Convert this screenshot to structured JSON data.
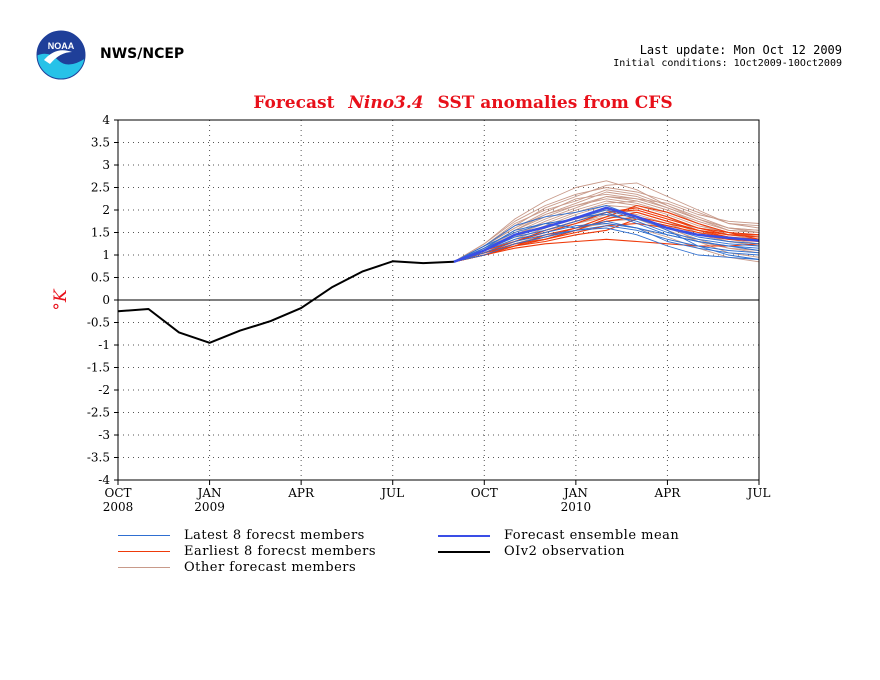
{
  "header": {
    "agency": "NWS/NCEP",
    "last_update": "Last update: Mon Oct 12 2009",
    "initial_conditions": "Initial conditions: 1Oct2009-10Oct2009"
  },
  "logo": {
    "text": "NOAA",
    "colors": {
      "top": "#1f3f99",
      "bottom": "#27c2e8",
      "bird": "#ffffff"
    }
  },
  "legend": {
    "latest": "Latest 8 forecst members",
    "earliest": "Earliest 8 forecst members",
    "other": "Other forecast members",
    "mean": "Forecast ensemble mean",
    "obs": "OIv2 observation"
  },
  "chart_data": {
    "type": "line",
    "title_prefix": "Forecast",
    "title_italic": "Nino3.4",
    "title_suffix": "SST anomalies from CFS",
    "ylabel": "°K",
    "ylim": [
      -4,
      4
    ],
    "yticks": [
      "-4",
      "-3.5",
      "-3",
      "-2.5",
      "-2",
      "-1.5",
      "-1",
      "-0.5",
      "0",
      "0.5",
      "1",
      "1.5",
      "2",
      "2.5",
      "3",
      "3.5",
      "4"
    ],
    "x_range_months": [
      0,
      21
    ],
    "x_ticks": [
      {
        "m": 0,
        "label": "OCT",
        "year": "2008"
      },
      {
        "m": 3,
        "label": "JAN",
        "year": "2009"
      },
      {
        "m": 6,
        "label": "APR",
        "year": ""
      },
      {
        "m": 9,
        "label": "JUL",
        "year": ""
      },
      {
        "m": 12,
        "label": "OCT",
        "year": ""
      },
      {
        "m": 15,
        "label": "JAN",
        "year": "2010"
      },
      {
        "m": 18,
        "label": "APR",
        "year": ""
      },
      {
        "m": 21,
        "label": "JUL",
        "year": ""
      }
    ],
    "grid": true,
    "colors": {
      "title": "#e8101a",
      "ylabel": "#e8101a",
      "latest": "#2f6fd1",
      "earliest": "#ee3a0a",
      "other": "#c89a8a",
      "mean": "#3a4ee6",
      "obs": "#000000"
    },
    "forecast_x": [
      11,
      12,
      13,
      14,
      15,
      16,
      17,
      18,
      19,
      20,
      21
    ],
    "observation": {
      "name": "OIv2 observation",
      "x": [
        0,
        1,
        2,
        3,
        4,
        5,
        6,
        7,
        8,
        9,
        10,
        11
      ],
      "values": [
        -0.25,
        -0.2,
        -0.72,
        -0.95,
        -0.68,
        -0.47,
        -0.18,
        0.28,
        0.63,
        0.86,
        0.82,
        0.85
      ]
    },
    "mean": {
      "name": "Forecast ensemble mean",
      "values": [
        0.85,
        1.1,
        1.45,
        1.62,
        1.82,
        2.05,
        1.85,
        1.6,
        1.45,
        1.38,
        1.32
      ]
    },
    "latest_members": [
      [
        0.85,
        1.15,
        1.55,
        1.7,
        1.6,
        1.75,
        1.6,
        1.3,
        1.15,
        1.05,
        1.0
      ],
      [
        0.85,
        1.1,
        1.4,
        1.55,
        1.75,
        1.95,
        1.7,
        1.45,
        1.3,
        1.2,
        1.15
      ],
      [
        0.85,
        1.2,
        1.65,
        1.85,
        1.95,
        2.1,
        1.85,
        1.55,
        1.2,
        1.0,
        0.9
      ],
      [
        0.85,
        1.05,
        1.3,
        1.45,
        1.55,
        1.6,
        1.45,
        1.2,
        1.0,
        0.95,
        0.9
      ],
      [
        0.85,
        1.15,
        1.45,
        1.6,
        1.85,
        1.9,
        1.75,
        1.5,
        1.35,
        1.25,
        1.2
      ],
      [
        0.85,
        1.1,
        1.35,
        1.5,
        1.65,
        1.7,
        1.6,
        1.45,
        1.3,
        1.2,
        1.1
      ],
      [
        0.85,
        1.2,
        1.5,
        1.7,
        1.8,
        2.0,
        1.8,
        1.6,
        1.4,
        1.3,
        1.25
      ],
      [
        0.85,
        1.0,
        1.25,
        1.4,
        1.55,
        1.65,
        1.55,
        1.35,
        1.2,
        1.1,
        1.05
      ]
    ],
    "earliest_members": [
      [
        0.85,
        1.05,
        1.25,
        1.35,
        1.55,
        1.8,
        1.95,
        1.75,
        1.55,
        1.45,
        1.4
      ],
      [
        0.85,
        1.0,
        1.2,
        1.3,
        1.45,
        1.55,
        1.8,
        1.65,
        1.5,
        1.4,
        1.35
      ],
      [
        0.85,
        1.05,
        1.3,
        1.5,
        1.7,
        1.95,
        2.05,
        1.85,
        1.6,
        1.45,
        1.45
      ],
      [
        0.85,
        1.0,
        1.15,
        1.25,
        1.3,
        1.35,
        1.3,
        1.25,
        1.2,
        1.2,
        1.25
      ],
      [
        0.85,
        1.05,
        1.2,
        1.45,
        1.6,
        1.85,
        2.1,
        1.95,
        1.7,
        1.5,
        1.35
      ],
      [
        0.85,
        1.0,
        1.25,
        1.4,
        1.6,
        1.75,
        1.85,
        1.7,
        1.55,
        1.4,
        1.3
      ],
      [
        0.85,
        1.1,
        1.3,
        1.55,
        1.75,
        1.95,
        2.0,
        1.8,
        1.6,
        1.5,
        1.45
      ],
      [
        0.85,
        1.0,
        1.2,
        1.35,
        1.5,
        1.65,
        1.7,
        1.6,
        1.45,
        1.35,
        1.3
      ]
    ],
    "other_members": [
      [
        0.85,
        1.25,
        1.8,
        2.2,
        2.5,
        2.65,
        2.45,
        2.1,
        1.8,
        1.6,
        1.55
      ],
      [
        0.85,
        1.2,
        1.65,
        2.05,
        2.3,
        2.55,
        2.6,
        2.3,
        2.0,
        1.7,
        1.6
      ],
      [
        0.85,
        1.15,
        1.55,
        1.9,
        2.15,
        2.4,
        2.3,
        2.05,
        1.8,
        1.55,
        1.5
      ],
      [
        0.85,
        1.1,
        1.45,
        1.75,
        2.0,
        2.2,
        2.1,
        1.9,
        1.65,
        1.5,
        1.45
      ],
      [
        0.85,
        1.2,
        1.6,
        1.95,
        2.25,
        2.35,
        2.25,
        2.15,
        1.9,
        1.75,
        1.7
      ],
      [
        0.85,
        1.05,
        1.35,
        1.6,
        1.85,
        2.0,
        1.95,
        1.75,
        1.5,
        1.3,
        1.2
      ],
      [
        0.85,
        1.15,
        1.5,
        1.8,
        2.05,
        2.3,
        2.2,
        2.0,
        1.7,
        1.45,
        1.35
      ],
      [
        0.85,
        1.1,
        1.4,
        1.65,
        1.9,
        2.1,
        2.05,
        1.85,
        1.55,
        1.35,
        1.25
      ],
      [
        0.85,
        1.0,
        1.2,
        1.4,
        1.55,
        1.75,
        1.8,
        1.65,
        1.3,
        1.05,
        0.95
      ],
      [
        0.85,
        1.05,
        1.3,
        1.5,
        1.7,
        1.9,
        1.85,
        1.6,
        1.35,
        1.15,
        1.05
      ],
      [
        0.85,
        1.2,
        1.7,
        2.0,
        2.2,
        2.45,
        2.35,
        2.1,
        1.85,
        1.6,
        1.5
      ],
      [
        0.85,
        1.1,
        1.45,
        1.7,
        1.95,
        2.15,
        2.2,
        2.0,
        1.75,
        1.55,
        1.5
      ],
      [
        0.85,
        1.0,
        1.25,
        1.45,
        1.6,
        1.7,
        1.6,
        1.4,
        1.15,
        0.95,
        0.85
      ],
      [
        0.85,
        1.15,
        1.55,
        1.85,
        2.1,
        2.3,
        2.25,
        2.05,
        1.8,
        1.6,
        1.55
      ],
      [
        0.85,
        1.05,
        1.35,
        1.6,
        1.8,
        1.95,
        1.9,
        1.7,
        1.45,
        1.3,
        1.25
      ],
      [
        0.85,
        1.2,
        1.6,
        1.9,
        2.1,
        2.25,
        2.15,
        1.95,
        1.7,
        1.5,
        1.4
      ],
      [
        0.85,
        1.1,
        1.4,
        1.55,
        1.7,
        1.85,
        1.8,
        1.55,
        1.3,
        1.15,
        1.1
      ],
      [
        0.85,
        1.25,
        1.75,
        2.1,
        2.35,
        2.5,
        2.4,
        2.2,
        1.95,
        1.7,
        1.65
      ]
    ]
  }
}
